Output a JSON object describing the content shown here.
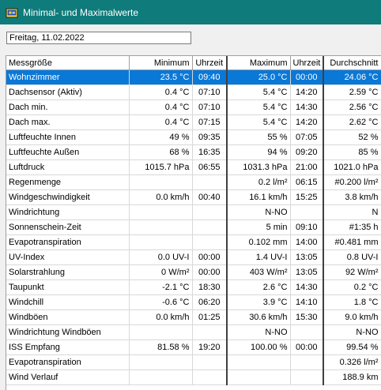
{
  "window": {
    "title": "Minimal- und Maximalwerte",
    "icon": "weather-station-icon"
  },
  "date_field": {
    "value": "Freitag, 11.02.2022"
  },
  "table": {
    "headers": [
      "Messgröße",
      "Minimum",
      "Uhrzeit",
      "Maximum",
      "Uhrzeit",
      "Durchschnitt"
    ],
    "selected_row": 0,
    "rows": [
      [
        "Wohnzimmer",
        "23.5 °C",
        "09:40",
        "25.0 °C",
        "00:00",
        "24.06 °C"
      ],
      [
        "Dachsensor (Aktiv)",
        "0.4 °C",
        "07:10",
        "5.4 °C",
        "14:20",
        "2.59 °C"
      ],
      [
        "Dach min.",
        "0.4 °C",
        "07:10",
        "5.4 °C",
        "14:30",
        "2.56 °C"
      ],
      [
        "Dach max.",
        "0.4 °C",
        "07:15",
        "5.4 °C",
        "14:20",
        "2.62 °C"
      ],
      [
        "Luftfeuchte Innen",
        "49 %",
        "09:35",
        "55 %",
        "07:05",
        "52 %"
      ],
      [
        "Luftfeuchte Außen",
        "68 %",
        "16:35",
        "94 %",
        "09:20",
        "85 %"
      ],
      [
        "Luftdruck",
        "1015.7 hPa",
        "06:55",
        "1031.3 hPa",
        "21:00",
        "1021.0 hPa"
      ],
      [
        "Regenmenge",
        "",
        "",
        "0.2 l/m²",
        "06:15",
        "#0.200 l/m²"
      ],
      [
        "Windgeschwindigkeit",
        "0.0 km/h",
        "00:40",
        "16.1 km/h",
        "15:25",
        "3.8 km/h"
      ],
      [
        "Windrichtung",
        "",
        "",
        "N-NO",
        "",
        "N"
      ],
      [
        "Sonnenschein-Zeit",
        "",
        "",
        "5 min",
        "09:10",
        "#1:35 h"
      ],
      [
        "Evapotranspiration",
        "",
        "",
        "0.102 mm",
        "14:00",
        "#0.481 mm"
      ],
      [
        "UV-Index",
        "0.0 UV-I",
        "00:00",
        "1.4 UV-I",
        "13:05",
        "0.8 UV-I"
      ],
      [
        "Solarstrahlung",
        "0 W/m²",
        "00:00",
        "403 W/m²",
        "13:05",
        "92 W/m²"
      ],
      [
        "Taupunkt",
        "-2.1 °C",
        "18:30",
        "2.6 °C",
        "14:30",
        "0.2 °C"
      ],
      [
        "Windchill",
        "-0.6 °C",
        "06:20",
        "3.9 °C",
        "14:10",
        "1.8 °C"
      ],
      [
        "Windböen",
        "0.0 km/h",
        "01:25",
        "30.6 km/h",
        "15:30",
        "9.0 km/h"
      ],
      [
        "Windrichtung Windböen",
        "",
        "",
        "N-NO",
        "",
        "N-NO"
      ],
      [
        "ISS Empfang",
        "81.58 %",
        "19:20",
        "100.00 %",
        "00:00",
        "99.54 %"
      ],
      [
        "Evapotranspiration",
        "",
        "",
        "",
        "",
        "0.326 l/m²"
      ],
      [
        "Wind Verlauf",
        "",
        "",
        "",
        "",
        "188.9 km"
      ]
    ]
  },
  "colors": {
    "titlebar": "#0f7b7b",
    "selection": "#0a78d7"
  }
}
